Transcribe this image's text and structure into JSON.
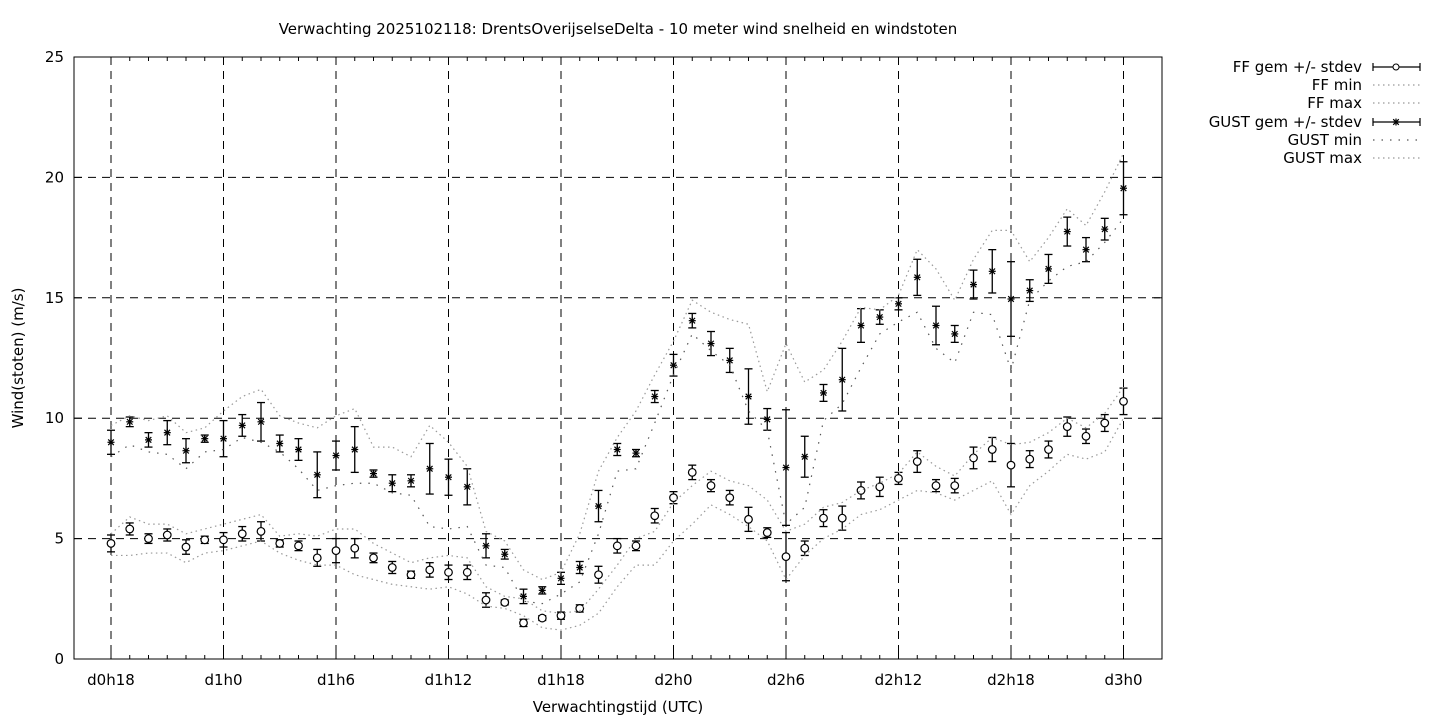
{
  "chart_data": {
    "type": "line",
    "title": "Verwachting 2025102118: DrentsOverijselseDelta - 10 meter wind snelheid en windstoten",
    "xlabel": "Verwachtingstijd (UTC)",
    "ylabel": "Wind(stoten) (m/s)",
    "ylim": [
      0,
      25
    ],
    "yticks": [
      "0",
      "5",
      "10",
      "15",
      "20",
      "25"
    ],
    "xticks": [
      "d0h18",
      "d1h0",
      "d1h6",
      "d1h12",
      "d1h18",
      "d2h0",
      "d2h6",
      "d2h12",
      "d2h18",
      "d3h0"
    ],
    "grid": true,
    "legend_position": "outside-top-right",
    "legend": [
      "FF gem +/- stdev",
      "FF min",
      "FF max",
      "GUST gem +/- stdev",
      "GUST min",
      "GUST max"
    ],
    "series": [
      {
        "name": "FF gem +/- stdev",
        "marker": "circle",
        "values": [
          4.8,
          5.4,
          5.0,
          5.15,
          4.65,
          4.95,
          4.95,
          5.2,
          5.3,
          4.8,
          4.7,
          4.2,
          4.5,
          4.6,
          4.2,
          3.8,
          3.5,
          3.7,
          3.6,
          3.6,
          2.45,
          2.35,
          1.5,
          1.7,
          1.8,
          2.1,
          3.5,
          4.7,
          4.7,
          5.95,
          6.7,
          7.75,
          7.2,
          6.7,
          5.8,
          5.25,
          4.25,
          4.6,
          5.85,
          5.85,
          7.0,
          7.15,
          7.5,
          8.2,
          7.2,
          7.2,
          8.35,
          8.7,
          8.05,
          8.3,
          8.7,
          9.65,
          9.25,
          9.8,
          10.7
        ],
        "stdev": [
          0.35,
          0.25,
          0.2,
          0.25,
          0.3,
          0.15,
          0.3,
          0.3,
          0.4,
          0.15,
          0.2,
          0.35,
          0.5,
          0.4,
          0.2,
          0.25,
          0.15,
          0.3,
          0.3,
          0.3,
          0.3,
          0.1,
          0.15,
          0.1,
          0.15,
          0.15,
          0.35,
          0.3,
          0.2,
          0.3,
          0.25,
          0.3,
          0.25,
          0.3,
          0.5,
          0.2,
          1.0,
          0.3,
          0.35,
          0.5,
          0.35,
          0.4,
          0.25,
          0.45,
          0.25,
          0.3,
          0.45,
          0.5,
          0.9,
          0.35,
          0.35,
          0.4,
          0.3,
          0.35,
          0.55
        ]
      },
      {
        "name": "FF min",
        "values": [
          4.3,
          4.3,
          4.4,
          4.4,
          4.0,
          4.4,
          4.5,
          4.7,
          4.9,
          4.4,
          4.1,
          3.9,
          3.9,
          3.5,
          3.3,
          3.1,
          3.0,
          2.9,
          3.0,
          2.7,
          2.2,
          2.1,
          1.8,
          1.3,
          1.2,
          1.4,
          1.9,
          3.0,
          3.9,
          3.9,
          4.9,
          5.6,
          6.4,
          6.0,
          5.5,
          4.9,
          3.3,
          4.3,
          5.0,
          5.4,
          6.0,
          6.2,
          6.6,
          7.0,
          6.9,
          6.6,
          7.0,
          7.4,
          6.0,
          7.2,
          7.8,
          8.5,
          8.3,
          8.6,
          10.0
        ]
      },
      {
        "name": "FF max",
        "values": [
          5.2,
          5.9,
          5.6,
          5.6,
          5.2,
          5.4,
          5.6,
          5.8,
          6.0,
          5.1,
          5.2,
          5.1,
          5.4,
          5.4,
          4.8,
          4.4,
          4.0,
          4.2,
          4.3,
          4.2,
          3.0,
          2.6,
          2.5,
          2.0,
          1.9,
          2.0,
          2.9,
          3.9,
          5.0,
          5.3,
          6.5,
          7.2,
          7.8,
          7.4,
          7.2,
          6.6,
          5.3,
          5.6,
          6.3,
          6.5,
          7.0,
          7.3,
          7.7,
          8.6,
          8.0,
          7.6,
          8.5,
          9.2,
          8.9,
          9.0,
          9.4,
          10.0,
          9.6,
          10.2,
          11.3
        ]
      },
      {
        "name": "GUST gem +/- stdev",
        "marker": "asterisk",
        "values": [
          9.0,
          9.85,
          9.1,
          9.4,
          8.65,
          9.15,
          9.15,
          9.7,
          9.85,
          8.95,
          8.7,
          7.65,
          8.45,
          8.7,
          7.7,
          7.3,
          7.4,
          7.9,
          7.55,
          7.15,
          4.7,
          4.35,
          2.6,
          2.85,
          3.35,
          3.8,
          6.35,
          8.7,
          8.55,
          10.9,
          12.2,
          14.05,
          13.1,
          12.4,
          10.9,
          9.95,
          7.95,
          8.4,
          11.05,
          11.6,
          13.85,
          14.2,
          14.75,
          15.85,
          13.85,
          13.5,
          15.55,
          16.1,
          14.95,
          15.3,
          16.2,
          17.75,
          17.0,
          17.85,
          19.55
        ],
        "stdev": [
          0.5,
          0.2,
          0.3,
          0.5,
          0.5,
          0.15,
          0.75,
          0.45,
          0.8,
          0.35,
          0.45,
          0.95,
          0.6,
          0.95,
          0.15,
          0.35,
          0.25,
          1.05,
          0.75,
          0.75,
          0.5,
          0.2,
          0.3,
          0.15,
          0.25,
          0.25,
          0.65,
          0.25,
          0.15,
          0.25,
          0.45,
          0.3,
          0.5,
          0.5,
          1.15,
          0.45,
          2.4,
          0.85,
          0.35,
          1.3,
          0.7,
          0.3,
          0.25,
          0.75,
          0.8,
          0.35,
          0.6,
          0.9,
          1.55,
          0.45,
          0.6,
          0.6,
          0.5,
          0.45,
          1.1
        ]
      },
      {
        "name": "GUST min",
        "values": [
          8.4,
          8.9,
          8.6,
          8.5,
          7.9,
          8.6,
          8.7,
          9.2,
          9.0,
          8.6,
          7.9,
          7.0,
          7.2,
          7.3,
          7.3,
          6.9,
          6.8,
          5.5,
          5.4,
          5.5,
          3.9,
          3.8,
          2.4,
          2.3,
          2.7,
          3.2,
          5.2,
          7.8,
          7.9,
          9.8,
          11.8,
          13.5,
          12.8,
          12.2,
          10.3,
          9.5,
          5.6,
          6.3,
          9.9,
          10.6,
          12.1,
          13.5,
          14.0,
          14.4,
          12.9,
          12.3,
          14.4,
          14.3,
          12.0,
          14.9,
          15.7,
          16.3,
          16.5,
          17.3,
          18.3
        ]
      },
      {
        "name": "GUST max",
        "values": [
          9.7,
          10.1,
          9.9,
          10.1,
          9.4,
          9.6,
          10.3,
          10.9,
          11.2,
          10.1,
          9.8,
          9.6,
          10.1,
          10.4,
          8.8,
          8.8,
          8.4,
          9.7,
          9.0,
          8.0,
          5.3,
          4.9,
          3.7,
          3.3,
          3.6,
          5.2,
          7.8,
          9.2,
          10.3,
          11.8,
          13.2,
          14.9,
          14.4,
          14.1,
          13.9,
          11.1,
          13.1,
          11.5,
          12.0,
          13.2,
          14.6,
          14.5,
          15.1,
          17.0,
          16.2,
          14.9,
          16.6,
          17.8,
          17.8,
          16.5,
          17.5,
          18.7,
          18.0,
          19.4,
          21.0
        ]
      }
    ],
    "colors": {
      "marker": "#000000",
      "minmax": "#999999",
      "gust_min": "#555555"
    }
  }
}
